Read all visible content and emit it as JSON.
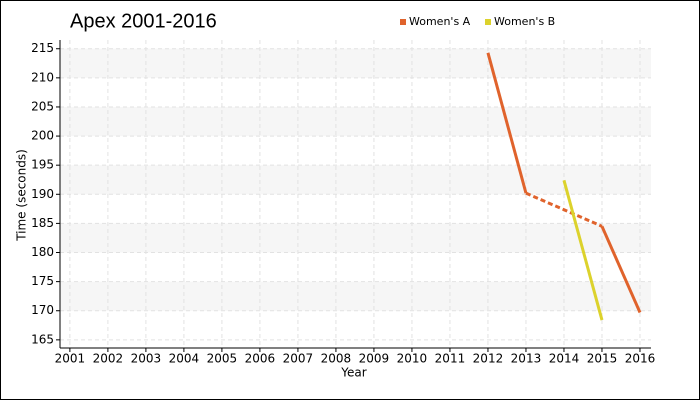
{
  "chart_data": {
    "type": "line",
    "title": "Apex 2001-2016",
    "x_label": "Year",
    "y_label": "Time (seconds)",
    "x": [
      2001,
      2002,
      2003,
      2004,
      2005,
      2006,
      2007,
      2008,
      2009,
      2010,
      2011,
      2012,
      2013,
      2014,
      2015,
      2016
    ],
    "series": [
      {
        "name": "Women's A",
        "color": "#e0632c",
        "values": [
          null,
          null,
          null,
          null,
          null,
          null,
          null,
          null,
          null,
          null,
          null,
          214.3,
          190.2,
          null,
          184.5,
          169.7
        ]
      },
      {
        "name": "Women's B",
        "color": "#dcd22c",
        "values": [
          null,
          null,
          null,
          null,
          null,
          null,
          null,
          null,
          null,
          null,
          null,
          null,
          null,
          192.4,
          168.4,
          null
        ]
      }
    ],
    "xlim": [
      2000.74,
      2016.29
    ],
    "ylim": [
      163.6,
      216.5
    ],
    "xticks": [
      2001,
      2002,
      2003,
      2004,
      2005,
      2006,
      2007,
      2008,
      2009,
      2010,
      2011,
      2012,
      2013,
      2014,
      2015,
      2016
    ],
    "yticks": [
      165,
      170,
      175,
      180,
      185,
      190,
      195,
      200,
      205,
      210,
      215
    ],
    "grid": true,
    "legend": "top"
  }
}
